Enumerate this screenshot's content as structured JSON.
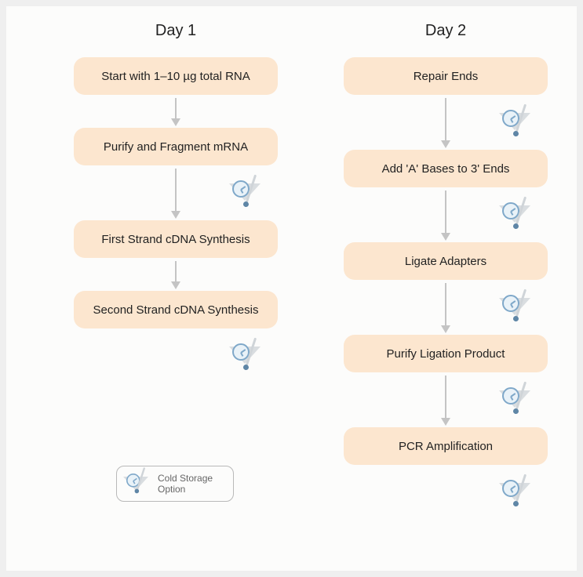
{
  "background_color": "#efefef",
  "canvas_color": "#fcfcfb",
  "step_bg": "#fce6cf",
  "arrow_color": "#c4c4c4",
  "text_color": "#222",
  "icon_funnel_color": "#d9dde0",
  "icon_clock_border": "#7fa8c9",
  "icon_clock_fill": "#e9f2f8",
  "icon_ball_color": "#5f86a6",
  "day1": {
    "title": "Day 1",
    "steps": [
      {
        "label": "Start with 1–10 µg total RNA",
        "cold_after": false
      },
      {
        "label": "Purify and Fragment mRNA",
        "cold_after": true
      },
      {
        "label": "First Strand cDNA Synthesis",
        "cold_after": false
      },
      {
        "label": "Second Strand cDNA Synthesis",
        "cold_after": true
      }
    ]
  },
  "day2": {
    "title": "Day 2",
    "steps": [
      {
        "label": "Repair Ends",
        "cold_after": true
      },
      {
        "label": "Add 'A' Bases to 3' Ends",
        "cold_after": true
      },
      {
        "label": "Ligate Adapters",
        "cold_after": true
      },
      {
        "label": "Purify Ligation Product",
        "cold_after": true
      },
      {
        "label": "PCR Amplification",
        "cold_after": true
      }
    ]
  },
  "legend": {
    "label": "Cold Storage\nOption"
  }
}
